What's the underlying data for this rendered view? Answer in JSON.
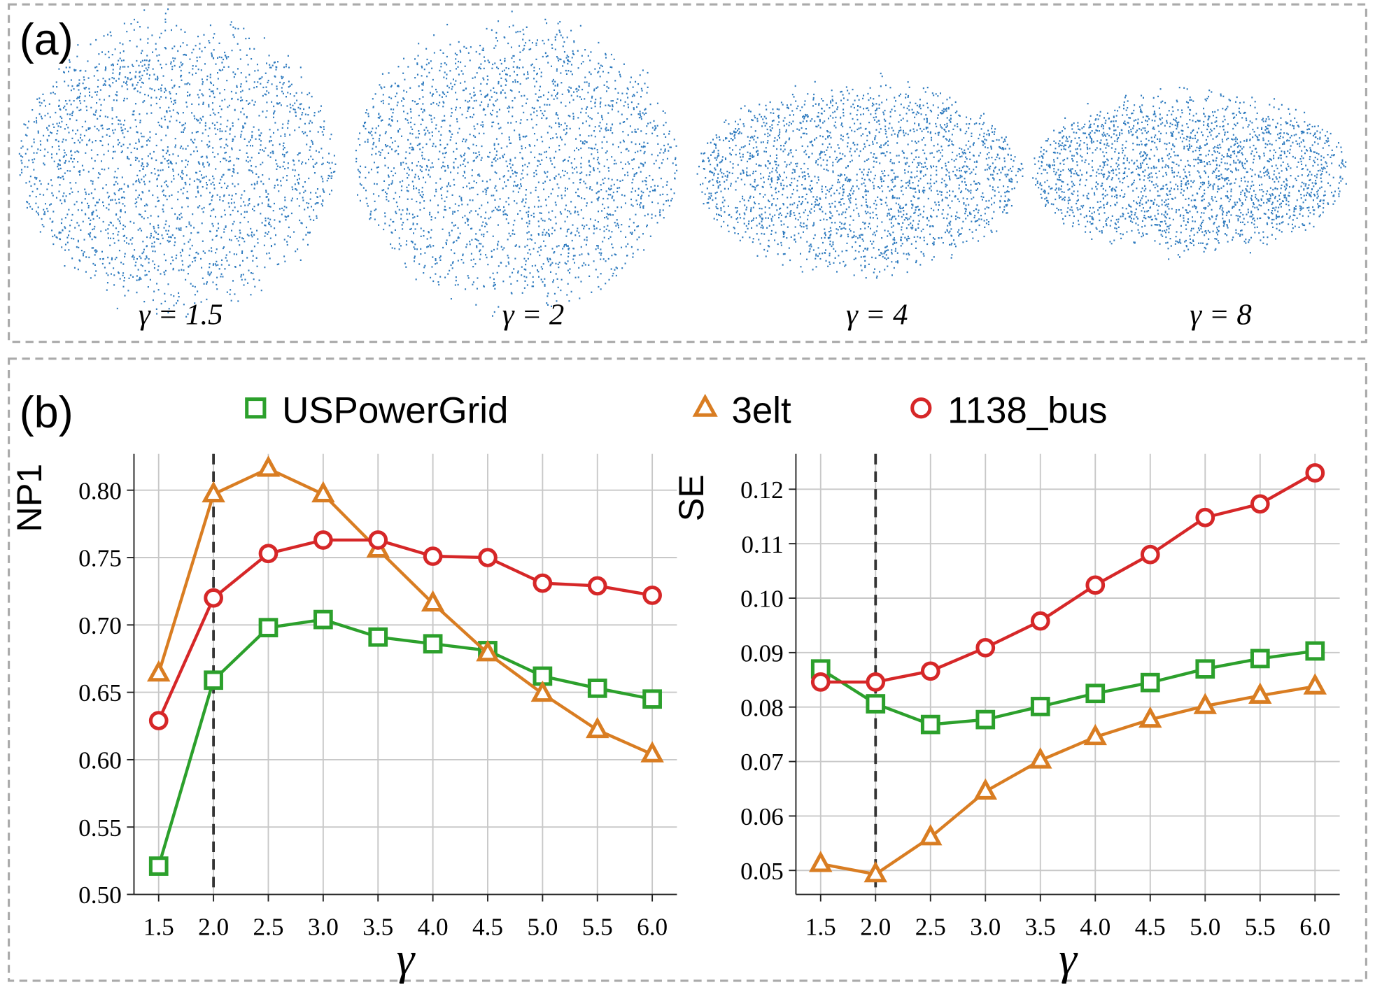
{
  "panel_a": {
    "label": "(a)",
    "captions": [
      "γ = 1.5",
      "γ = 2",
      "γ = 4",
      "γ = 8"
    ]
  },
  "panel_b": {
    "label": "(b)"
  },
  "chart_data": [
    {
      "type": "line",
      "ylabel": "NP1",
      "xlabel": "γ",
      "x": [
        1.5,
        2.0,
        2.5,
        3.0,
        3.5,
        4.0,
        4.5,
        5.0,
        5.5,
        6.0
      ],
      "xlim": [
        1.275,
        6.225
      ],
      "xticks": [
        1.5,
        {
          "value": 2,
          "label": "2.0"
        },
        2.5,
        {
          "value": 3,
          "label": "3.0"
        },
        3.5,
        {
          "value": 4,
          "label": "4.0"
        },
        4.5,
        {
          "value": 5,
          "label": "5.0"
        },
        5.5,
        {
          "value": 6,
          "label": "6.0"
        }
      ],
      "ylim": [
        0.5,
        0.827
      ],
      "yticks": [
        {
          "value": 0.5,
          "label": "0.50"
        },
        0.55,
        {
          "value": 0.6,
          "label": "0.60"
        },
        0.65,
        {
          "value": 0.7,
          "label": "0.70"
        },
        0.75,
        {
          "value": 0.8,
          "label": "0.80"
        }
      ],
      "grid": true,
      "vline": 2,
      "series": [
        {
          "name": "USPowerGrid",
          "color": "#2ca02c",
          "marker": "square",
          "values": [
            0.521,
            0.659,
            0.698,
            0.704,
            0.691,
            0.686,
            0.681,
            0.662,
            0.653,
            0.645
          ]
        },
        {
          "name": "3elt",
          "color": "#d97d22",
          "marker": "triangle",
          "values": [
            0.664,
            0.797,
            0.816,
            0.797,
            0.756,
            0.716,
            0.679,
            0.649,
            0.622,
            0.604
          ]
        },
        {
          "name": "1138_bus",
          "color": "#d62728",
          "marker": "circle",
          "values": [
            0.629,
            0.72,
            0.753,
            0.763,
            0.763,
            0.751,
            0.75,
            0.731,
            0.729,
            0.722
          ]
        }
      ]
    },
    {
      "type": "line",
      "ylabel": "SE",
      "xlabel": "γ",
      "x": [
        1.5,
        2.0,
        2.5,
        3.0,
        3.5,
        4.0,
        4.5,
        5.0,
        5.5,
        6.0
      ],
      "xlim": [
        1.275,
        6.225
      ],
      "xticks": [
        1.5,
        {
          "value": 2,
          "label": "2.0"
        },
        2.5,
        {
          "value": 3,
          "label": "3.0"
        },
        3.5,
        {
          "value": 4,
          "label": "4.0"
        },
        4.5,
        {
          "value": 5,
          "label": "5.0"
        },
        5.5,
        {
          "value": 6,
          "label": "6.0"
        }
      ],
      "ylim": [
        0.0456,
        0.1265
      ],
      "yticks": [
        0.05,
        0.06,
        0.07,
        0.08,
        0.09,
        {
          "value": 0.1,
          "label": "0.10"
        },
        0.11,
        0.12
      ],
      "grid": true,
      "vline": 2,
      "series": [
        {
          "color": "#2ca02c",
          "marker": "square",
          "values": [
            0.087,
            0.0806,
            0.0768,
            0.0777,
            0.0801,
            0.0825,
            0.0845,
            0.087,
            0.0889,
            0.0903
          ]
        },
        {
          "color": "#d97d22",
          "marker": "triangle",
          "values": [
            0.0512,
            0.0493,
            0.0561,
            0.0645,
            0.0702,
            0.0745,
            0.0777,
            0.0802,
            0.0821,
            0.0838
          ]
        },
        {
          "color": "#d62728",
          "marker": "circle",
          "values": [
            0.0846,
            0.0846,
            0.0866,
            0.0909,
            0.0958,
            0.1024,
            0.108,
            0.1148,
            0.1173,
            0.123
          ]
        }
      ]
    }
  ]
}
